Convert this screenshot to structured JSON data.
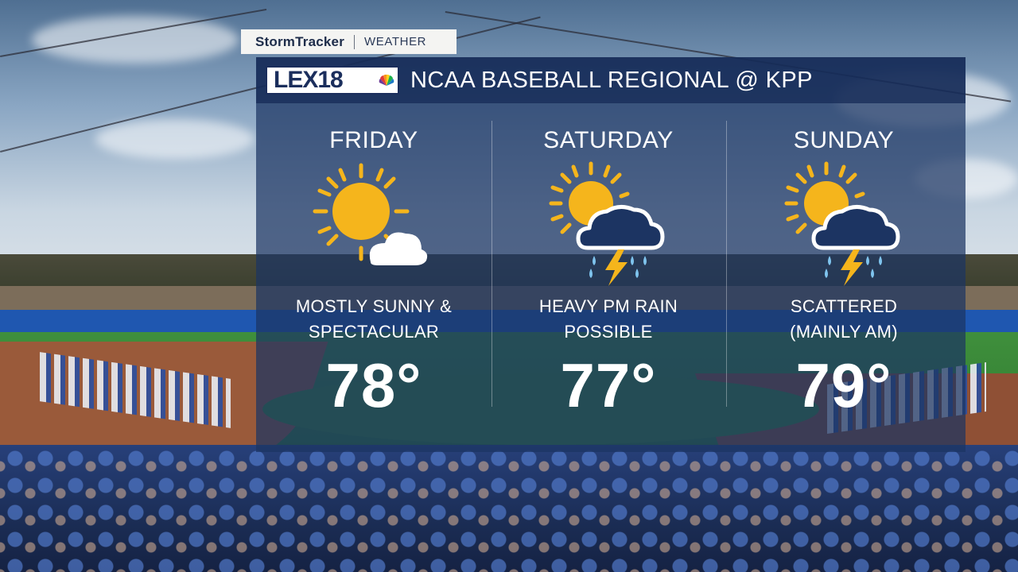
{
  "brand": {
    "name": "StormTracker",
    "section": "Weather",
    "station_logo": "LEX18"
  },
  "header": {
    "title": "NCAA BASEBALL REGIONAL @ KPP"
  },
  "forecast": [
    {
      "day": "FRIDAY",
      "icon": "mostly-sunny-icon",
      "condition_line1": "MOSTLY SUNNY &",
      "condition_line2": "SPECTACULAR",
      "temp": "78°"
    },
    {
      "day": "SATURDAY",
      "icon": "sun-thunderstorm-icon",
      "condition_line1": "HEAVY PM RAIN",
      "condition_line2": "POSSIBLE",
      "temp": "77°"
    },
    {
      "day": "SUNDAY",
      "icon": "sun-thunderstorm-icon",
      "condition_line1": "SCATTERED",
      "condition_line2": "(MAINLY AM)",
      "temp": "79°"
    }
  ],
  "colors": {
    "sun": "#f5b51c",
    "cloud": "#ffffff",
    "rain": "#7fc4ee",
    "lightning": "#f5b51c",
    "panel": "#1c3462"
  }
}
